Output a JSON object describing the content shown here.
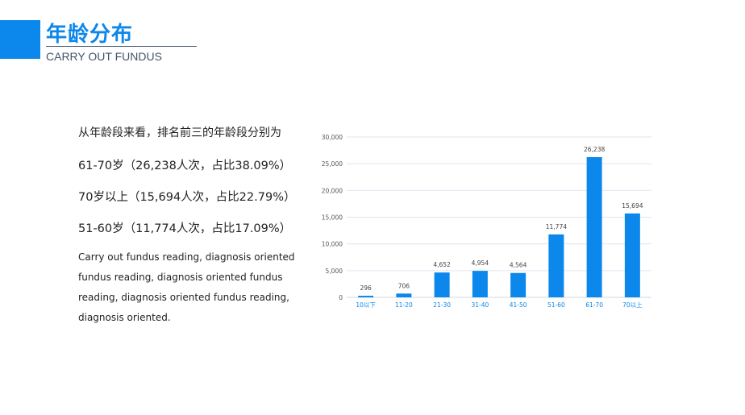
{
  "header": {
    "title": "年龄分布",
    "subtitle": "CARRY OUT FUNDUS",
    "accent": "#0c87eb"
  },
  "summary": {
    "lines": [
      "从年龄段来看，排名前三的年龄段分别为",
      "61-70岁（26,238人次，占比38.09%）",
      "70岁以上（15,694人次，占比22.79%）",
      "51-60岁（11,774人次，占比17.09%）"
    ],
    "paragraph": "Carry out fundus reading, diagnosis oriented fundus reading, diagnosis oriented fundus reading, diagnosis oriented fundus reading, diagnosis oriented."
  },
  "chart_data": {
    "type": "bar",
    "categories": [
      "10以下",
      "11-20",
      "21-30",
      "31-40",
      "41-50",
      "51-60",
      "61-70",
      "70以上"
    ],
    "values": [
      296,
      706,
      4652,
      4954,
      4564,
      11774,
      26238,
      15694
    ],
    "data_labels": [
      "296",
      "706",
      "4,652",
      "4,954",
      "4,564",
      "11,774",
      "26,238",
      "15,694"
    ],
    "yticks": [
      "0",
      "5,000",
      "10,000",
      "15,000",
      "20,000",
      "25,000",
      "30,000"
    ],
    "ylim": [
      0,
      30000
    ],
    "grid": true,
    "bar_color": "#0c87eb",
    "title": "",
    "xlabel": "",
    "ylabel": ""
  }
}
